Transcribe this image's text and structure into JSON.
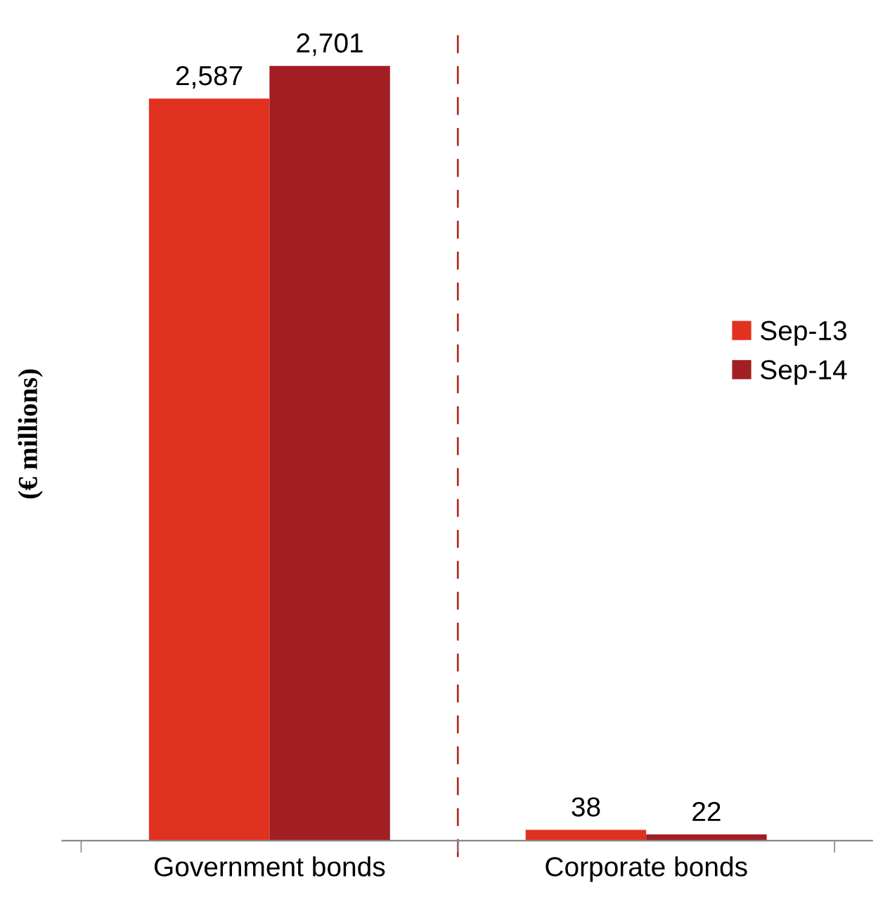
{
  "chart_data": {
    "type": "bar",
    "ylabel": "(€ millions)",
    "categories": [
      "Government bonds",
      "Corporate bonds"
    ],
    "series": [
      {
        "name": "Sep-13",
        "color": "#e0321f",
        "values": [
          2587,
          38
        ],
        "value_labels": [
          "2,587",
          "38"
        ]
      },
      {
        "name": "Sep-14",
        "color": "#a11f22",
        "values": [
          2701,
          22
        ],
        "value_labels": [
          "2,701",
          "22"
        ]
      }
    ],
    "legend": "right",
    "grid": false
  }
}
